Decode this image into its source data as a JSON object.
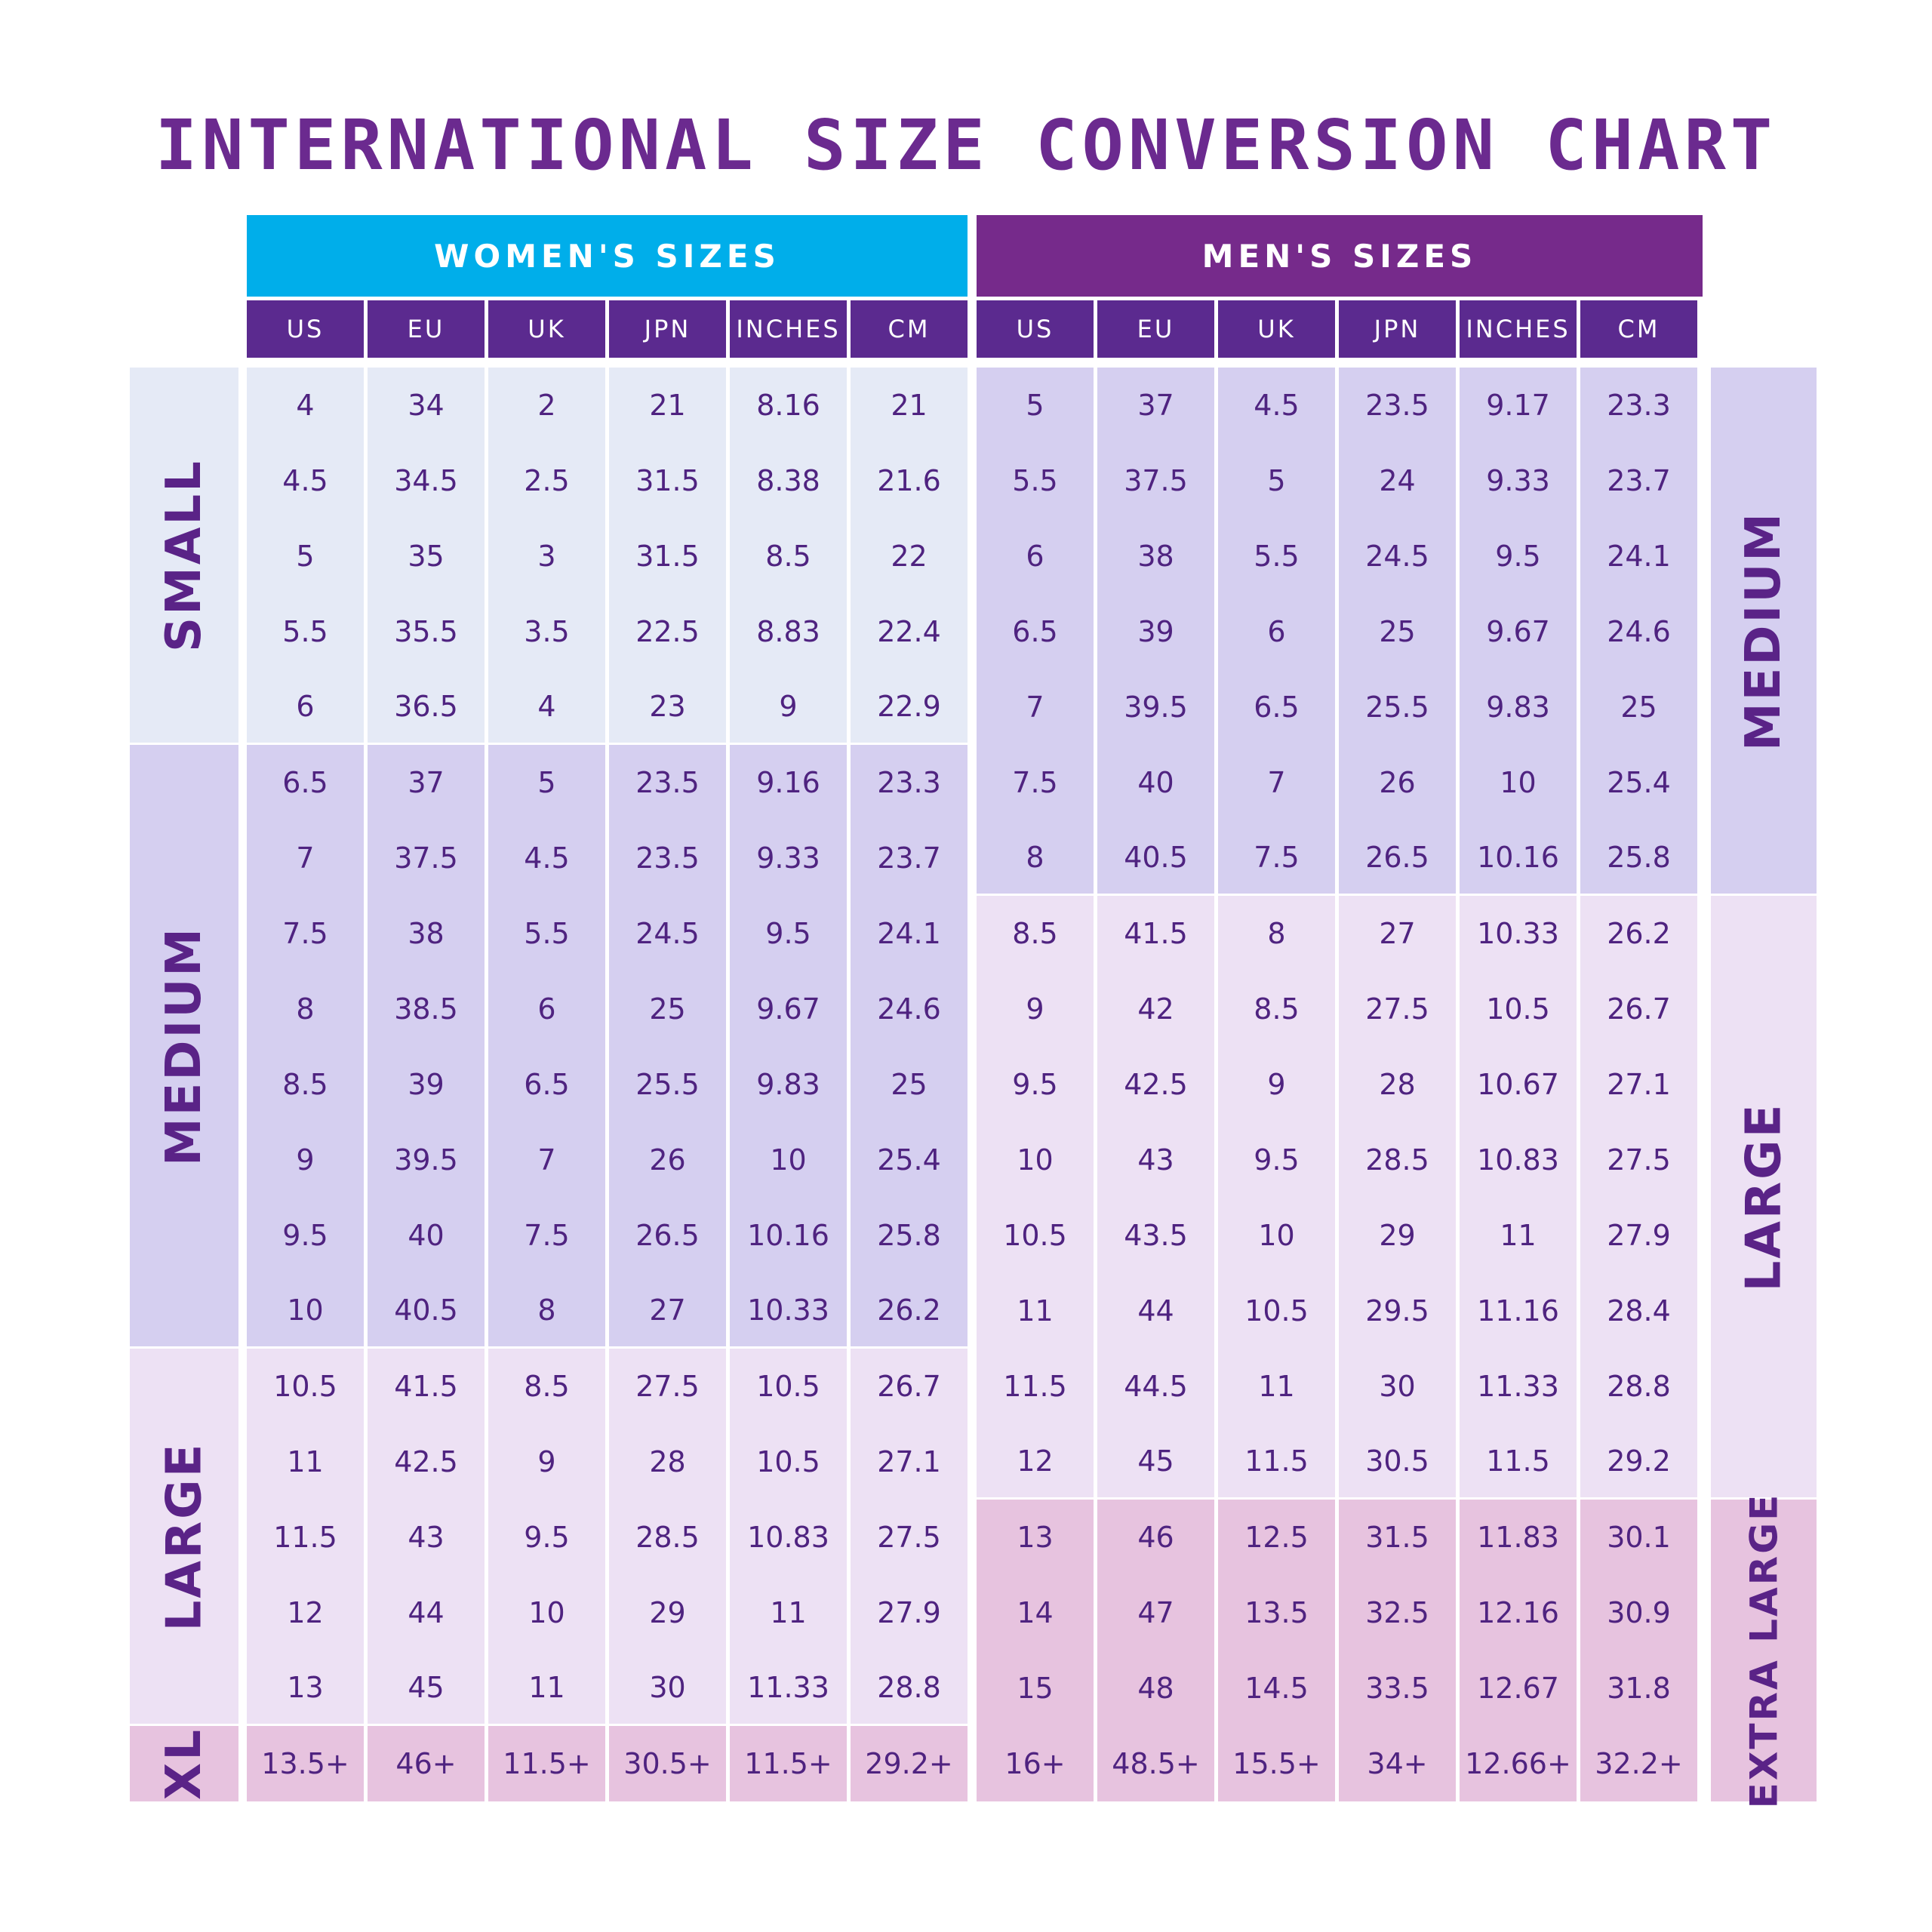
{
  "title": "INTERNATIONAL SIZE CONVERSION CHART",
  "colors": {
    "title": "#6b2a8f",
    "women_header": "#00aeea",
    "men_header": "#762a8b",
    "column_header": "#5b2a8f",
    "small": "#e5eaf6",
    "medium": "#d5cff0",
    "large": "#ede1f4",
    "extra_large": "#e7c3df"
  },
  "chart_data": {
    "type": "table",
    "title": "INTERNATIONAL SIZE CONVERSION CHART",
    "groups": [
      {
        "name": "WOMEN'S SIZES",
        "columns": [
          "US",
          "EU",
          "UK",
          "JPN",
          "INCHES",
          "CM"
        ],
        "bands": [
          {
            "label": "SMALL",
            "tone": "small",
            "start": 0,
            "count": 5
          },
          {
            "label": "MEDIUM",
            "tone": "medium",
            "start": 5,
            "count": 8
          },
          {
            "label": "LARGE",
            "tone": "large",
            "start": 13,
            "count": 5
          },
          {
            "label": "XL",
            "tone": "extra_large",
            "start": 18,
            "count": 1
          }
        ],
        "rows": [
          [
            "4",
            "34",
            "2",
            "21",
            "8.16",
            "21"
          ],
          [
            "4.5",
            "34.5",
            "2.5",
            "31.5",
            "8.38",
            "21.6"
          ],
          [
            "5",
            "35",
            "3",
            "31.5",
            "8.5",
            "22"
          ],
          [
            "5.5",
            "35.5",
            "3.5",
            "22.5",
            "8.83",
            "22.4"
          ],
          [
            "6",
            "36.5",
            "4",
            "23",
            "9",
            "22.9"
          ],
          [
            "6.5",
            "37",
            "5",
            "23.5",
            "9.16",
            "23.3"
          ],
          [
            "7",
            "37.5",
            "4.5",
            "23.5",
            "9.33",
            "23.7"
          ],
          [
            "7.5",
            "38",
            "5.5",
            "24.5",
            "9.5",
            "24.1"
          ],
          [
            "8",
            "38.5",
            "6",
            "25",
            "9.67",
            "24.6"
          ],
          [
            "8.5",
            "39",
            "6.5",
            "25.5",
            "9.83",
            "25"
          ],
          [
            "9",
            "39.5",
            "7",
            "26",
            "10",
            "25.4"
          ],
          [
            "9.5",
            "40",
            "7.5",
            "26.5",
            "10.16",
            "25.8"
          ],
          [
            "10",
            "40.5",
            "8",
            "27",
            "10.33",
            "26.2"
          ],
          [
            "10.5",
            "41.5",
            "8.5",
            "27.5",
            "10.5",
            "26.7"
          ],
          [
            "11",
            "42.5",
            "9",
            "28",
            "10.5",
            "27.1"
          ],
          [
            "11.5",
            "43",
            "9.5",
            "28.5",
            "10.83",
            "27.5"
          ],
          [
            "12",
            "44",
            "10",
            "29",
            "11",
            "27.9"
          ],
          [
            "13",
            "45",
            "11",
            "30",
            "11.33",
            "28.8"
          ],
          [
            "13.5+",
            "46+",
            "11.5+",
            "30.5+",
            "11.5+",
            "29.2+"
          ]
        ]
      },
      {
        "name": "MEN'S SIZES",
        "columns": [
          "US",
          "EU",
          "UK",
          "JPN",
          "INCHES",
          "CM"
        ],
        "bands": [
          {
            "label": "MEDIUM",
            "tone": "medium",
            "start": 0,
            "count": 7
          },
          {
            "label": "LARGE",
            "tone": "large",
            "start": 7,
            "count": 8
          },
          {
            "label": "EXTRA LARGE",
            "tone": "extra_large",
            "start": 15,
            "count": 4
          }
        ],
        "rows": [
          [
            "5",
            "37",
            "4.5",
            "23.5",
            "9.17",
            "23.3"
          ],
          [
            "5.5",
            "37.5",
            "5",
            "24",
            "9.33",
            "23.7"
          ],
          [
            "6",
            "38",
            "5.5",
            "24.5",
            "9.5",
            "24.1"
          ],
          [
            "6.5",
            "39",
            "6",
            "25",
            "9.67",
            "24.6"
          ],
          [
            "7",
            "39.5",
            "6.5",
            "25.5",
            "9.83",
            "25"
          ],
          [
            "7.5",
            "40",
            "7",
            "26",
            "10",
            "25.4"
          ],
          [
            "8",
            "40.5",
            "7.5",
            "26.5",
            "10.16",
            "25.8"
          ],
          [
            "8.5",
            "41.5",
            "8",
            "27",
            "10.33",
            "26.2"
          ],
          [
            "9",
            "42",
            "8.5",
            "27.5",
            "10.5",
            "26.7"
          ],
          [
            "9.5",
            "42.5",
            "9",
            "28",
            "10.67",
            "27.1"
          ],
          [
            "10",
            "43",
            "9.5",
            "28.5",
            "10.83",
            "27.5"
          ],
          [
            "10.5",
            "43.5",
            "10",
            "29",
            "11",
            "27.9"
          ],
          [
            "11",
            "44",
            "10.5",
            "29.5",
            "11.16",
            "28.4"
          ],
          [
            "11.5",
            "44.5",
            "11",
            "30",
            "11.33",
            "28.8"
          ],
          [
            "12",
            "45",
            "11.5",
            "30.5",
            "11.5",
            "29.2"
          ],
          [
            "13",
            "46",
            "12.5",
            "31.5",
            "11.83",
            "30.1"
          ],
          [
            "14",
            "47",
            "13.5",
            "32.5",
            "12.16",
            "30.9"
          ],
          [
            "15",
            "48",
            "14.5",
            "33.5",
            "12.67",
            "31.8"
          ],
          [
            "16+",
            "48.5+",
            "15.5+",
            "34+",
            "12.66+",
            "32.2+"
          ]
        ]
      }
    ]
  }
}
